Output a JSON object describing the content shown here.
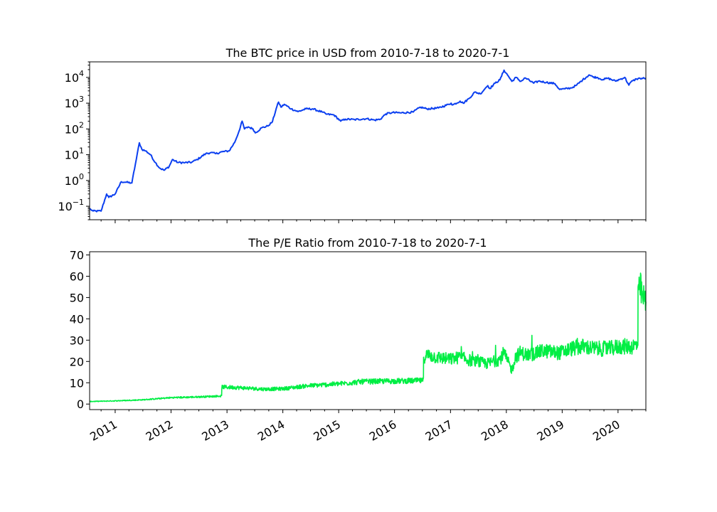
{
  "chart_data": [
    {
      "type": "line",
      "title": "The BTC price in USD from 2010-7-18 to 2020-7-1",
      "xlabel": "",
      "ylabel": "",
      "yscale": "log",
      "xlim": [
        "2010-07-18",
        "2020-07-01"
      ],
      "ylim": [
        0.03,
        40000
      ],
      "ytick_values": [
        0.1,
        1,
        10,
        100,
        1000,
        10000
      ],
      "ytick_labels": [
        {
          "base": "10",
          "exp": "−1"
        },
        {
          "base": "10",
          "exp": "0"
        },
        {
          "base": "10",
          "exp": "1"
        },
        {
          "base": "10",
          "exp": "2"
        },
        {
          "base": "10",
          "exp": "3"
        },
        {
          "base": "10",
          "exp": "4"
        }
      ],
      "grid": false,
      "color": "#0b3ff0",
      "series": [
        {
          "x": [
            "2010-07-18",
            "2010-08-10",
            "2010-10-01",
            "2010-11-06",
            "2010-11-20",
            "2011-01-01",
            "2011-02-10",
            "2011-03-15",
            "2011-04-20",
            "2011-05-20",
            "2011-06-08",
            "2011-06-25",
            "2011-07-20",
            "2011-08-20",
            "2011-09-20",
            "2011-10-20",
            "2011-11-18",
            "2011-12-20",
            "2012-01-10",
            "2012-02-15",
            "2012-04-01",
            "2012-05-15",
            "2012-06-20",
            "2012-08-15",
            "2012-09-15",
            "2012-10-20",
            "2012-12-01",
            "2013-01-15",
            "2013-02-20",
            "2013-03-20",
            "2013-04-10",
            "2013-04-25",
            "2013-05-20",
            "2013-06-20",
            "2013-07-05",
            "2013-08-15",
            "2013-09-25",
            "2013-10-25",
            "2013-11-18",
            "2013-12-04",
            "2013-12-20",
            "2014-01-10",
            "2014-02-25",
            "2014-04-10",
            "2014-06-01",
            "2014-07-15",
            "2014-09-15",
            "2014-10-15",
            "2014-12-01",
            "2015-01-14",
            "2015-02-15",
            "2015-04-15",
            "2015-07-01",
            "2015-08-25",
            "2015-10-01",
            "2015-11-04",
            "2015-12-15",
            "2016-02-15",
            "2016-05-01",
            "2016-06-18",
            "2016-08-01",
            "2016-10-15",
            "2016-12-20",
            "2017-01-05",
            "2017-01-15",
            "2017-03-05",
            "2017-03-25",
            "2017-05-01",
            "2017-06-10",
            "2017-07-15",
            "2017-08-20",
            "2017-09-02",
            "2017-09-15",
            "2017-10-20",
            "2017-11-20",
            "2017-12-17",
            "2018-01-15",
            "2018-02-06",
            "2018-03-05",
            "2018-04-05",
            "2018-05-05",
            "2018-06-29",
            "2018-08-01",
            "2018-09-20",
            "2018-11-15",
            "2018-12-15",
            "2019-01-20",
            "2019-03-01",
            "2019-04-05",
            "2019-05-15",
            "2019-06-26",
            "2019-07-20",
            "2019-08-15",
            "2019-09-25",
            "2019-10-26",
            "2019-12-15",
            "2020-01-15",
            "2020-02-14",
            "2020-03-12",
            "2020-03-25",
            "2020-04-30",
            "2020-05-25",
            "2020-07-01"
          ],
          "y": [
            0.08,
            0.065,
            0.065,
            0.3,
            0.22,
            0.3,
            0.9,
            0.85,
            0.8,
            7.0,
            29,
            16,
            14,
            10,
            5.0,
            3.0,
            2.5,
            3.5,
            6.5,
            5.0,
            4.9,
            5.1,
            6.5,
            11,
            12,
            11,
            13,
            14,
            30,
            80,
            200,
            100,
            120,
            100,
            70,
            110,
            130,
            190,
            600,
            1100,
            700,
            900,
            600,
            470,
            600,
            600,
            450,
            370,
            350,
            200,
            240,
            230,
            250,
            220,
            240,
            380,
            430,
            420,
            450,
            700,
            600,
            650,
            900,
            1000,
            850,
            1200,
            1000,
            1500,
            2700,
            2300,
            4000,
            4800,
            3700,
            6000,
            8000,
            19000,
            11000,
            7000,
            10000,
            7000,
            9500,
            6000,
            7200,
            6400,
            5700,
            3400,
            3600,
            3900,
            5000,
            8000,
            12500,
            10500,
            10000,
            8200,
            9300,
            7200,
            8500,
            10000,
            5000,
            6600,
            8700,
            9100,
            9200
          ]
        }
      ]
    },
    {
      "type": "line",
      "title": "The P/E Ratio from 2010-7-18 to 2020-7-1",
      "xlabel": "",
      "ylabel": "",
      "xlim": [
        "2010-07-18",
        "2020-07-01"
      ],
      "ylim": [
        -2.6,
        71.5
      ],
      "ytick_values": [
        0,
        10,
        20,
        30,
        40,
        50,
        60,
        70
      ],
      "ytick_labels": [
        "0",
        "10",
        "20",
        "30",
        "40",
        "50",
        "60",
        "70"
      ],
      "xtick_dates": [
        "2011-01-01",
        "2012-01-01",
        "2013-01-01",
        "2014-01-01",
        "2015-01-01",
        "2016-01-01",
        "2017-01-01",
        "2018-01-01",
        "2019-01-01",
        "2020-01-01"
      ],
      "xtick_labels": [
        "2011",
        "2012",
        "2013",
        "2014",
        "2015",
        "2016",
        "2017",
        "2018",
        "2019",
        "2020"
      ],
      "grid": false,
      "color": "#00ee44",
      "series": [
        {
          "x": [
            "2010-07-18",
            "2011-01-01",
            "2011-07-01",
            "2012-01-01",
            "2012-06-01",
            "2012-11-27",
            "2012-11-28",
            "2013-03-01",
            "2013-09-01",
            "2014-01-01",
            "2014-06-01",
            "2015-01-01",
            "2015-06-01",
            "2016-01-01",
            "2016-07-08",
            "2016-07-09",
            "2016-08-01",
            "2016-10-01",
            "2017-01-01",
            "2017-03-01",
            "2017-06-01",
            "2017-09-01",
            "2017-11-20",
            "2017-12-15",
            "2018-01-10",
            "2018-02-06",
            "2018-03-01",
            "2018-04-01",
            "2018-06-01",
            "2018-09-01",
            "2018-12-15",
            "2019-03-01",
            "2019-05-20",
            "2019-08-01",
            "2019-11-01",
            "2020-01-15",
            "2020-04-01",
            "2020-05-10",
            "2020-05-11",
            "2020-05-25",
            "2020-06-10",
            "2020-07-01"
          ],
          "y": [
            1.2,
            1.5,
            2.0,
            3.0,
            3.3,
            3.8,
            8.0,
            7.8,
            7.0,
            7.2,
            8.5,
            9.5,
            10.5,
            10.8,
            11.0,
            22,
            23,
            22,
            21,
            22,
            20,
            19,
            21,
            24,
            20,
            16,
            22,
            24,
            23,
            25,
            24,
            26,
            27,
            26,
            26,
            27,
            27,
            28,
            50,
            55,
            50,
            48
          ]
        }
      ]
    }
  ]
}
